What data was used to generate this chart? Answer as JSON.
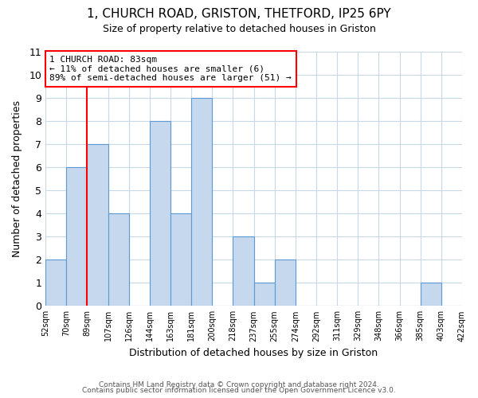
{
  "title_line1": "1, CHURCH ROAD, GRISTON, THETFORD, IP25 6PY",
  "title_line2": "Size of property relative to detached houses in Griston",
  "xlabel": "Distribution of detached houses by size in Griston",
  "ylabel": "Number of detached properties",
  "footer_line1": "Contains HM Land Registry data © Crown copyright and database right 2024.",
  "footer_line2": "Contains public sector information licensed under the Open Government Licence v3.0.",
  "bin_labels": [
    "52sqm",
    "70sqm",
    "89sqm",
    "107sqm",
    "126sqm",
    "144sqm",
    "163sqm",
    "181sqm",
    "200sqm",
    "218sqm",
    "237sqm",
    "255sqm",
    "274sqm",
    "292sqm",
    "311sqm",
    "329sqm",
    "348sqm",
    "366sqm",
    "385sqm",
    "403sqm",
    "422sqm"
  ],
  "counts": [
    2,
    6,
    7,
    4,
    0,
    8,
    4,
    9,
    0,
    3,
    1,
    2,
    0,
    0,
    0,
    0,
    0,
    0,
    1,
    0
  ],
  "bar_color": "#c5d8ed",
  "bar_edge_color": "#5b9bd5",
  "vline_index": 2,
  "annotation_text": "1 CHURCH ROAD: 83sqm\n← 11% of detached houses are smaller (6)\n89% of semi-detached houses are larger (51) →",
  "annotation_box_color": "white",
  "annotation_box_edge_color": "red",
  "vline_color": "red",
  "ylim": [
    0,
    11
  ],
  "yticks": [
    0,
    1,
    2,
    3,
    4,
    5,
    6,
    7,
    8,
    9,
    10,
    11
  ],
  "background_color": "white",
  "grid_color": "#c8d8e8",
  "n_bins": 20,
  "n_labels": 21
}
